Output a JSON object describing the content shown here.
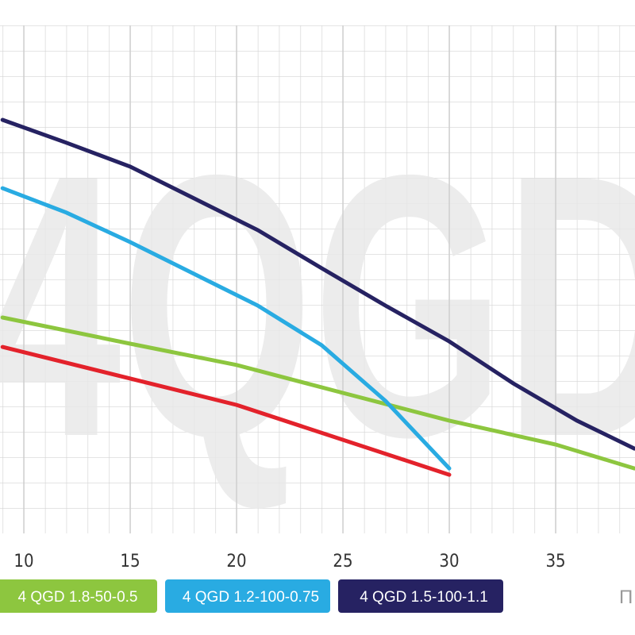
{
  "chart_data": {
    "type": "line",
    "watermark": "4QGD",
    "x_label": "П",
    "xlim": [
      8.88,
      38.73
    ],
    "ylim": [
      0,
      21
    ],
    "xticks": [
      10,
      15,
      20,
      25,
      30,
      35
    ],
    "grid": true,
    "series": [
      {
        "color": "#e3222b",
        "x": [
          9,
          20,
          30
        ],
        "values": [
          7.34,
          5.06,
          2.31
        ]
      },
      {
        "name": "4 QGD 1.8-50-0.5",
        "color": "#8dc63f",
        "x": [
          9,
          15,
          20,
          25,
          30,
          35,
          38.7
        ],
        "values": [
          8.5,
          7.47,
          6.63,
          5.53,
          4.44,
          3.5,
          2.56
        ]
      },
      {
        "name": "4 QGD 1.2-100-0.75",
        "color": "#29abe2",
        "x": [
          9,
          12,
          15,
          18,
          21,
          24,
          27,
          30
        ],
        "values": [
          13.59,
          12.63,
          11.47,
          10.22,
          8.97,
          7.41,
          5.22,
          2.56
        ]
      },
      {
        "name": "4 QGD 1.5-100-1.1",
        "color": "#262262",
        "x": [
          9,
          12,
          15,
          18,
          21,
          24,
          27,
          30,
          33,
          36,
          38.7
        ],
        "values": [
          16.28,
          15.38,
          14.44,
          13.19,
          11.94,
          10.44,
          8.97,
          7.56,
          5.91,
          4.44,
          3.34
        ]
      }
    ]
  }
}
